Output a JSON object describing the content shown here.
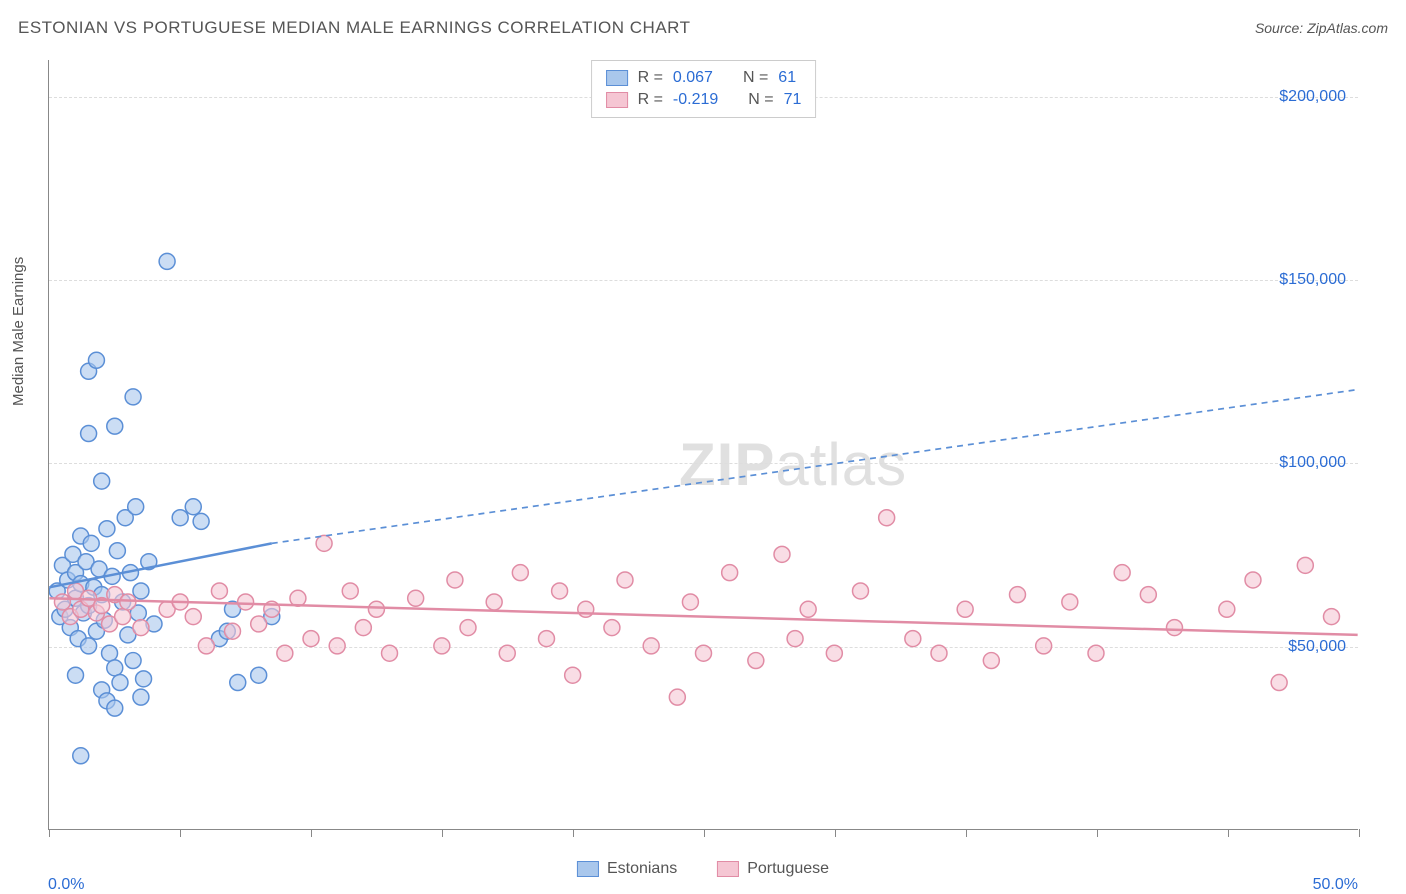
{
  "header": {
    "title": "ESTONIAN VS PORTUGUESE MEDIAN MALE EARNINGS CORRELATION CHART",
    "source_prefix": "Source: ",
    "source": "ZipAtlas.com"
  },
  "ylabel": "Median Male Earnings",
  "watermark": {
    "zip": "ZIP",
    "atlas": "atlas"
  },
  "chart": {
    "type": "scatter",
    "xlim": [
      0,
      50
    ],
    "ylim": [
      0,
      210000
    ],
    "xaxis_min_label": "0.0%",
    "xaxis_max_label": "50.0%",
    "xtick_positions": [
      0,
      5,
      10,
      15,
      20,
      25,
      30,
      35,
      40,
      45,
      50
    ],
    "ygrid": [
      50000,
      100000,
      150000,
      200000
    ],
    "ytick_labels": [
      "$50,000",
      "$100,000",
      "$150,000",
      "$200,000"
    ],
    "axis_color": "#888888",
    "grid_color": "#dddddd",
    "tick_label_color": "#2b6cd4",
    "marker_radius": 8,
    "marker_stroke_width": 1.5,
    "marker_fill_opacity": 0.25,
    "line_width": 2.5,
    "dash_pattern": "6,5",
    "series": [
      {
        "name": "Estonians",
        "color_stroke": "#5b8fd6",
        "color_fill": "#a9c7ec",
        "R": "0.067",
        "N": "61",
        "trend_solid": {
          "x1": 0,
          "y1": 66000,
          "x2": 8.5,
          "y2": 78000
        },
        "trend_dash": {
          "x1": 8.5,
          "y1": 78000,
          "x2": 50,
          "y2": 120000
        },
        "points": [
          [
            0.3,
            65000
          ],
          [
            0.4,
            58000
          ],
          [
            0.5,
            72000
          ],
          [
            0.6,
            60000
          ],
          [
            0.7,
            68000
          ],
          [
            0.8,
            55000
          ],
          [
            0.9,
            75000
          ],
          [
            1.0,
            63000
          ],
          [
            1.0,
            70000
          ],
          [
            1.1,
            52000
          ],
          [
            1.2,
            80000
          ],
          [
            1.2,
            67000
          ],
          [
            1.3,
            59000
          ],
          [
            1.4,
            73000
          ],
          [
            1.5,
            61000
          ],
          [
            1.5,
            50000
          ],
          [
            1.6,
            78000
          ],
          [
            1.7,
            66000
          ],
          [
            1.8,
            54000
          ],
          [
            1.9,
            71000
          ],
          [
            2.0,
            95000
          ],
          [
            2.0,
            64000
          ],
          [
            2.1,
            57000
          ],
          [
            2.2,
            82000
          ],
          [
            2.3,
            48000
          ],
          [
            2.4,
            69000
          ],
          [
            2.5,
            44000
          ],
          [
            2.6,
            76000
          ],
          [
            2.7,
            40000
          ],
          [
            2.8,
            62000
          ],
          [
            2.9,
            85000
          ],
          [
            3.0,
            53000
          ],
          [
            3.1,
            70000
          ],
          [
            3.2,
            46000
          ],
          [
            3.3,
            88000
          ],
          [
            3.4,
            59000
          ],
          [
            3.5,
            65000
          ],
          [
            3.6,
            41000
          ],
          [
            3.8,
            73000
          ],
          [
            4.0,
            56000
          ],
          [
            1.5,
            125000
          ],
          [
            1.8,
            128000
          ],
          [
            2.5,
            110000
          ],
          [
            3.2,
            118000
          ],
          [
            4.5,
            155000
          ],
          [
            5.0,
            85000
          ],
          [
            5.5,
            88000
          ],
          [
            5.8,
            84000
          ],
          [
            6.5,
            52000
          ],
          [
            6.8,
            54000
          ],
          [
            7.0,
            60000
          ],
          [
            7.2,
            40000
          ],
          [
            2.0,
            38000
          ],
          [
            1.0,
            42000
          ],
          [
            1.2,
            20000
          ],
          [
            2.2,
            35000
          ],
          [
            2.5,
            33000
          ],
          [
            3.5,
            36000
          ],
          [
            8.0,
            42000
          ],
          [
            8.5,
            58000
          ],
          [
            1.5,
            108000
          ]
        ]
      },
      {
        "name": "Portuguese",
        "color_stroke": "#e18ca5",
        "color_fill": "#f5c6d3",
        "R": "-0.219",
        "N": "71",
        "trend_solid": {
          "x1": 0,
          "y1": 63000,
          "x2": 50,
          "y2": 53000
        },
        "trend_dash": null,
        "points": [
          [
            0.5,
            62000
          ],
          [
            0.8,
            58000
          ],
          [
            1.0,
            65000
          ],
          [
            1.2,
            60000
          ],
          [
            1.5,
            63000
          ],
          [
            1.8,
            59000
          ],
          [
            2.0,
            61000
          ],
          [
            2.3,
            56000
          ],
          [
            2.5,
            64000
          ],
          [
            2.8,
            58000
          ],
          [
            3.0,
            62000
          ],
          [
            3.5,
            55000
          ],
          [
            4.5,
            60000
          ],
          [
            5.0,
            62000
          ],
          [
            5.5,
            58000
          ],
          [
            6.0,
            50000
          ],
          [
            6.5,
            65000
          ],
          [
            7.0,
            54000
          ],
          [
            7.5,
            62000
          ],
          [
            8.0,
            56000
          ],
          [
            8.5,
            60000
          ],
          [
            9.0,
            48000
          ],
          [
            9.5,
            63000
          ],
          [
            10.0,
            52000
          ],
          [
            10.5,
            78000
          ],
          [
            11.0,
            50000
          ],
          [
            11.5,
            65000
          ],
          [
            12.0,
            55000
          ],
          [
            12.5,
            60000
          ],
          [
            13.0,
            48000
          ],
          [
            14.0,
            63000
          ],
          [
            15.0,
            50000
          ],
          [
            15.5,
            68000
          ],
          [
            16.0,
            55000
          ],
          [
            17.0,
            62000
          ],
          [
            17.5,
            48000
          ],
          [
            18.0,
            70000
          ],
          [
            19.0,
            52000
          ],
          [
            19.5,
            65000
          ],
          [
            20.0,
            42000
          ],
          [
            20.5,
            60000
          ],
          [
            21.5,
            55000
          ],
          [
            22.0,
            68000
          ],
          [
            23.0,
            50000
          ],
          [
            24.0,
            36000
          ],
          [
            24.5,
            62000
          ],
          [
            25.0,
            48000
          ],
          [
            26.0,
            70000
          ],
          [
            27.0,
            46000
          ],
          [
            28.0,
            75000
          ],
          [
            28.5,
            52000
          ],
          [
            29.0,
            60000
          ],
          [
            30.0,
            48000
          ],
          [
            31.0,
            65000
          ],
          [
            32.0,
            85000
          ],
          [
            33.0,
            52000
          ],
          [
            34.0,
            48000
          ],
          [
            35.0,
            60000
          ],
          [
            36.0,
            46000
          ],
          [
            37.0,
            64000
          ],
          [
            38.0,
            50000
          ],
          [
            39.0,
            62000
          ],
          [
            40.0,
            48000
          ],
          [
            41.0,
            70000
          ],
          [
            42.0,
            64000
          ],
          [
            43.0,
            55000
          ],
          [
            45.0,
            60000
          ],
          [
            46.0,
            68000
          ],
          [
            47.0,
            40000
          ],
          [
            48.0,
            72000
          ],
          [
            49.0,
            58000
          ]
        ]
      }
    ],
    "legend_top_label": {
      "R_prefix": "R = ",
      "N_prefix": "N = "
    }
  }
}
